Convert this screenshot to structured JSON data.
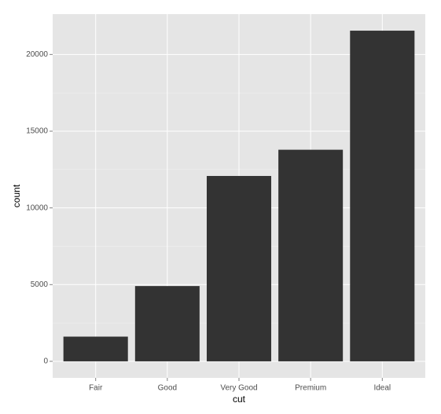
{
  "chart_data": {
    "type": "bar",
    "x_label": "cut",
    "y_label": "count",
    "categories": [
      "Fair",
      "Good",
      "Very Good",
      "Premium",
      "Ideal"
    ],
    "values": [
      1610,
      4906,
      12082,
      13791,
      21551
    ],
    "color": "#333333",
    "ylim": [
      -1078,
      22629
    ],
    "yticks": [
      0,
      5000,
      10000,
      15000,
      20000
    ],
    "minor_yticks": [
      2500,
      7500,
      12500,
      17500
    ],
    "grid": true
  }
}
